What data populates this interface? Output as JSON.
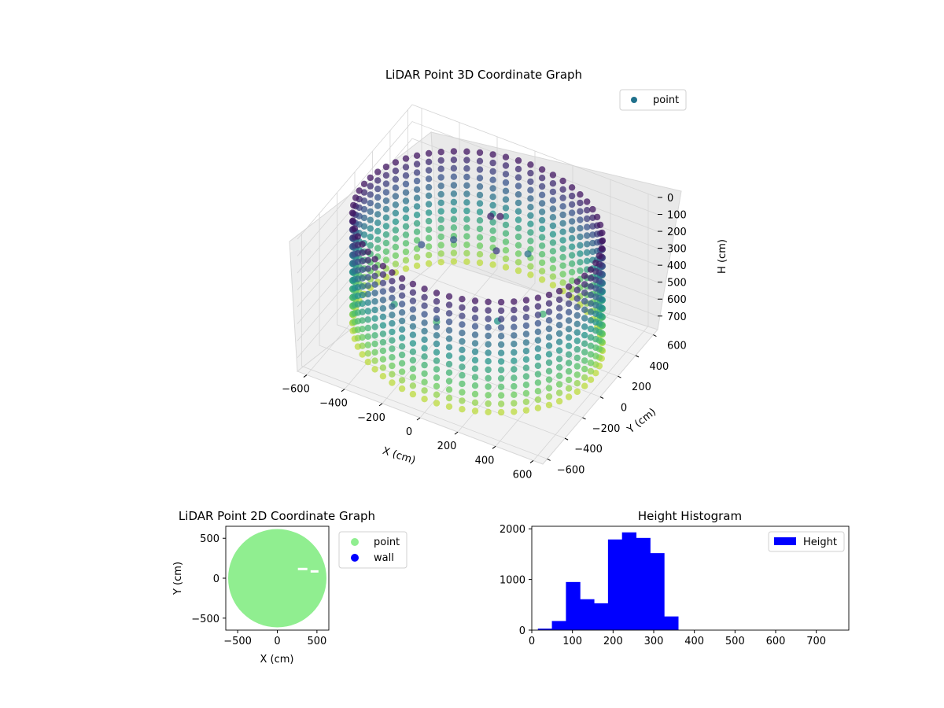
{
  "chart_data": [
    {
      "type": "scatter",
      "title": "LiDAR Point 3D Coordinate Graph",
      "xlabel": "X (cm)",
      "ylabel": "Y (cm)",
      "zlabel": "H (cm)",
      "xlim": [
        -650,
        650
      ],
      "ylim": [
        -650,
        650
      ],
      "zlim": [
        780,
        0
      ],
      "x_ticks": [
        -600,
        -400,
        -200,
        0,
        200,
        400,
        600
      ],
      "y_ticks": [
        -600,
        -400,
        -200,
        0,
        200,
        400,
        600
      ],
      "z_ticks": [
        0,
        100,
        200,
        300,
        400,
        500,
        600,
        700
      ],
      "colormap": "viridis",
      "grid": true,
      "legend": {
        "placement": "upper-right",
        "entries": [
          {
            "label": "point",
            "color": "#21718c"
          }
        ]
      },
      "series": [
        {
          "name": "point",
          "description_of_shape": "cylindrical wall ring of radius ~600 with interior floor points",
          "wall_ring": {
            "radius": 600,
            "h_values": [
              50,
              100,
              150,
              200,
              250,
              300,
              350,
              400,
              450,
              500,
              550,
              600,
              650,
              700
            ]
          },
          "interior_points": [
            {
              "x": -250,
              "y": -100,
              "h": 200
            },
            {
              "x": -150,
              "y": 50,
              "h": 220
            },
            {
              "x": 0,
              "y": 150,
              "h": 80
            },
            {
              "x": 50,
              "y": 150,
              "h": 60
            },
            {
              "x": 100,
              "y": 0,
              "h": 150
            },
            {
              "x": -300,
              "y": -300,
              "h": 450
            },
            {
              "x": 200,
              "y": -200,
              "h": 400
            },
            {
              "x": 300,
              "y": 100,
              "h": 500
            },
            {
              "x": -100,
              "y": -250,
              "h": 500
            },
            {
              "x": 150,
              "y": 250,
              "h": 300
            }
          ]
        }
      ]
    },
    {
      "type": "scatter",
      "title": "LiDAR Point 2D Coordinate Graph",
      "xlabel": "X (cm)",
      "ylabel": "Y (cm)",
      "xlim": [
        -650,
        650
      ],
      "ylim": [
        -650,
        650
      ],
      "x_ticks": [
        -500,
        0,
        500
      ],
      "y_ticks": [
        -500,
        0,
        500
      ],
      "legend": {
        "placement": "outside-right",
        "entries": [
          {
            "label": "point",
            "color": "#90ee90"
          },
          {
            "label": "wall",
            "color": "#0000ff"
          }
        ]
      },
      "series": [
        {
          "name": "point",
          "color": "#90ee90",
          "shape": "filled disc",
          "center": [
            0,
            0
          ],
          "radius": 620
        },
        {
          "name": "wall",
          "color": "#0000ff",
          "values": []
        }
      ]
    },
    {
      "type": "bar",
      "title": "Height Histogram",
      "xlim": [
        0,
        780
      ],
      "ylim": [
        0,
        2050
      ],
      "x_ticks": [
        0,
        100,
        200,
        300,
        400,
        500,
        600,
        700
      ],
      "y_ticks": [
        0,
        1000,
        2000
      ],
      "legend": {
        "placement": "upper-right",
        "entries": [
          {
            "label": "Height",
            "color": "#0000ff"
          }
        ]
      },
      "series": [
        {
          "name": "Height",
          "color": "#0000ff",
          "bin_width": 34.5,
          "bin_starts": [
            15,
            49.5,
            84,
            118.5,
            153,
            187.5,
            222,
            256.5,
            291,
            325.5
          ],
          "values": [
            30,
            180,
            950,
            610,
            530,
            1790,
            1930,
            1820,
            1520,
            270
          ]
        }
      ]
    }
  ]
}
